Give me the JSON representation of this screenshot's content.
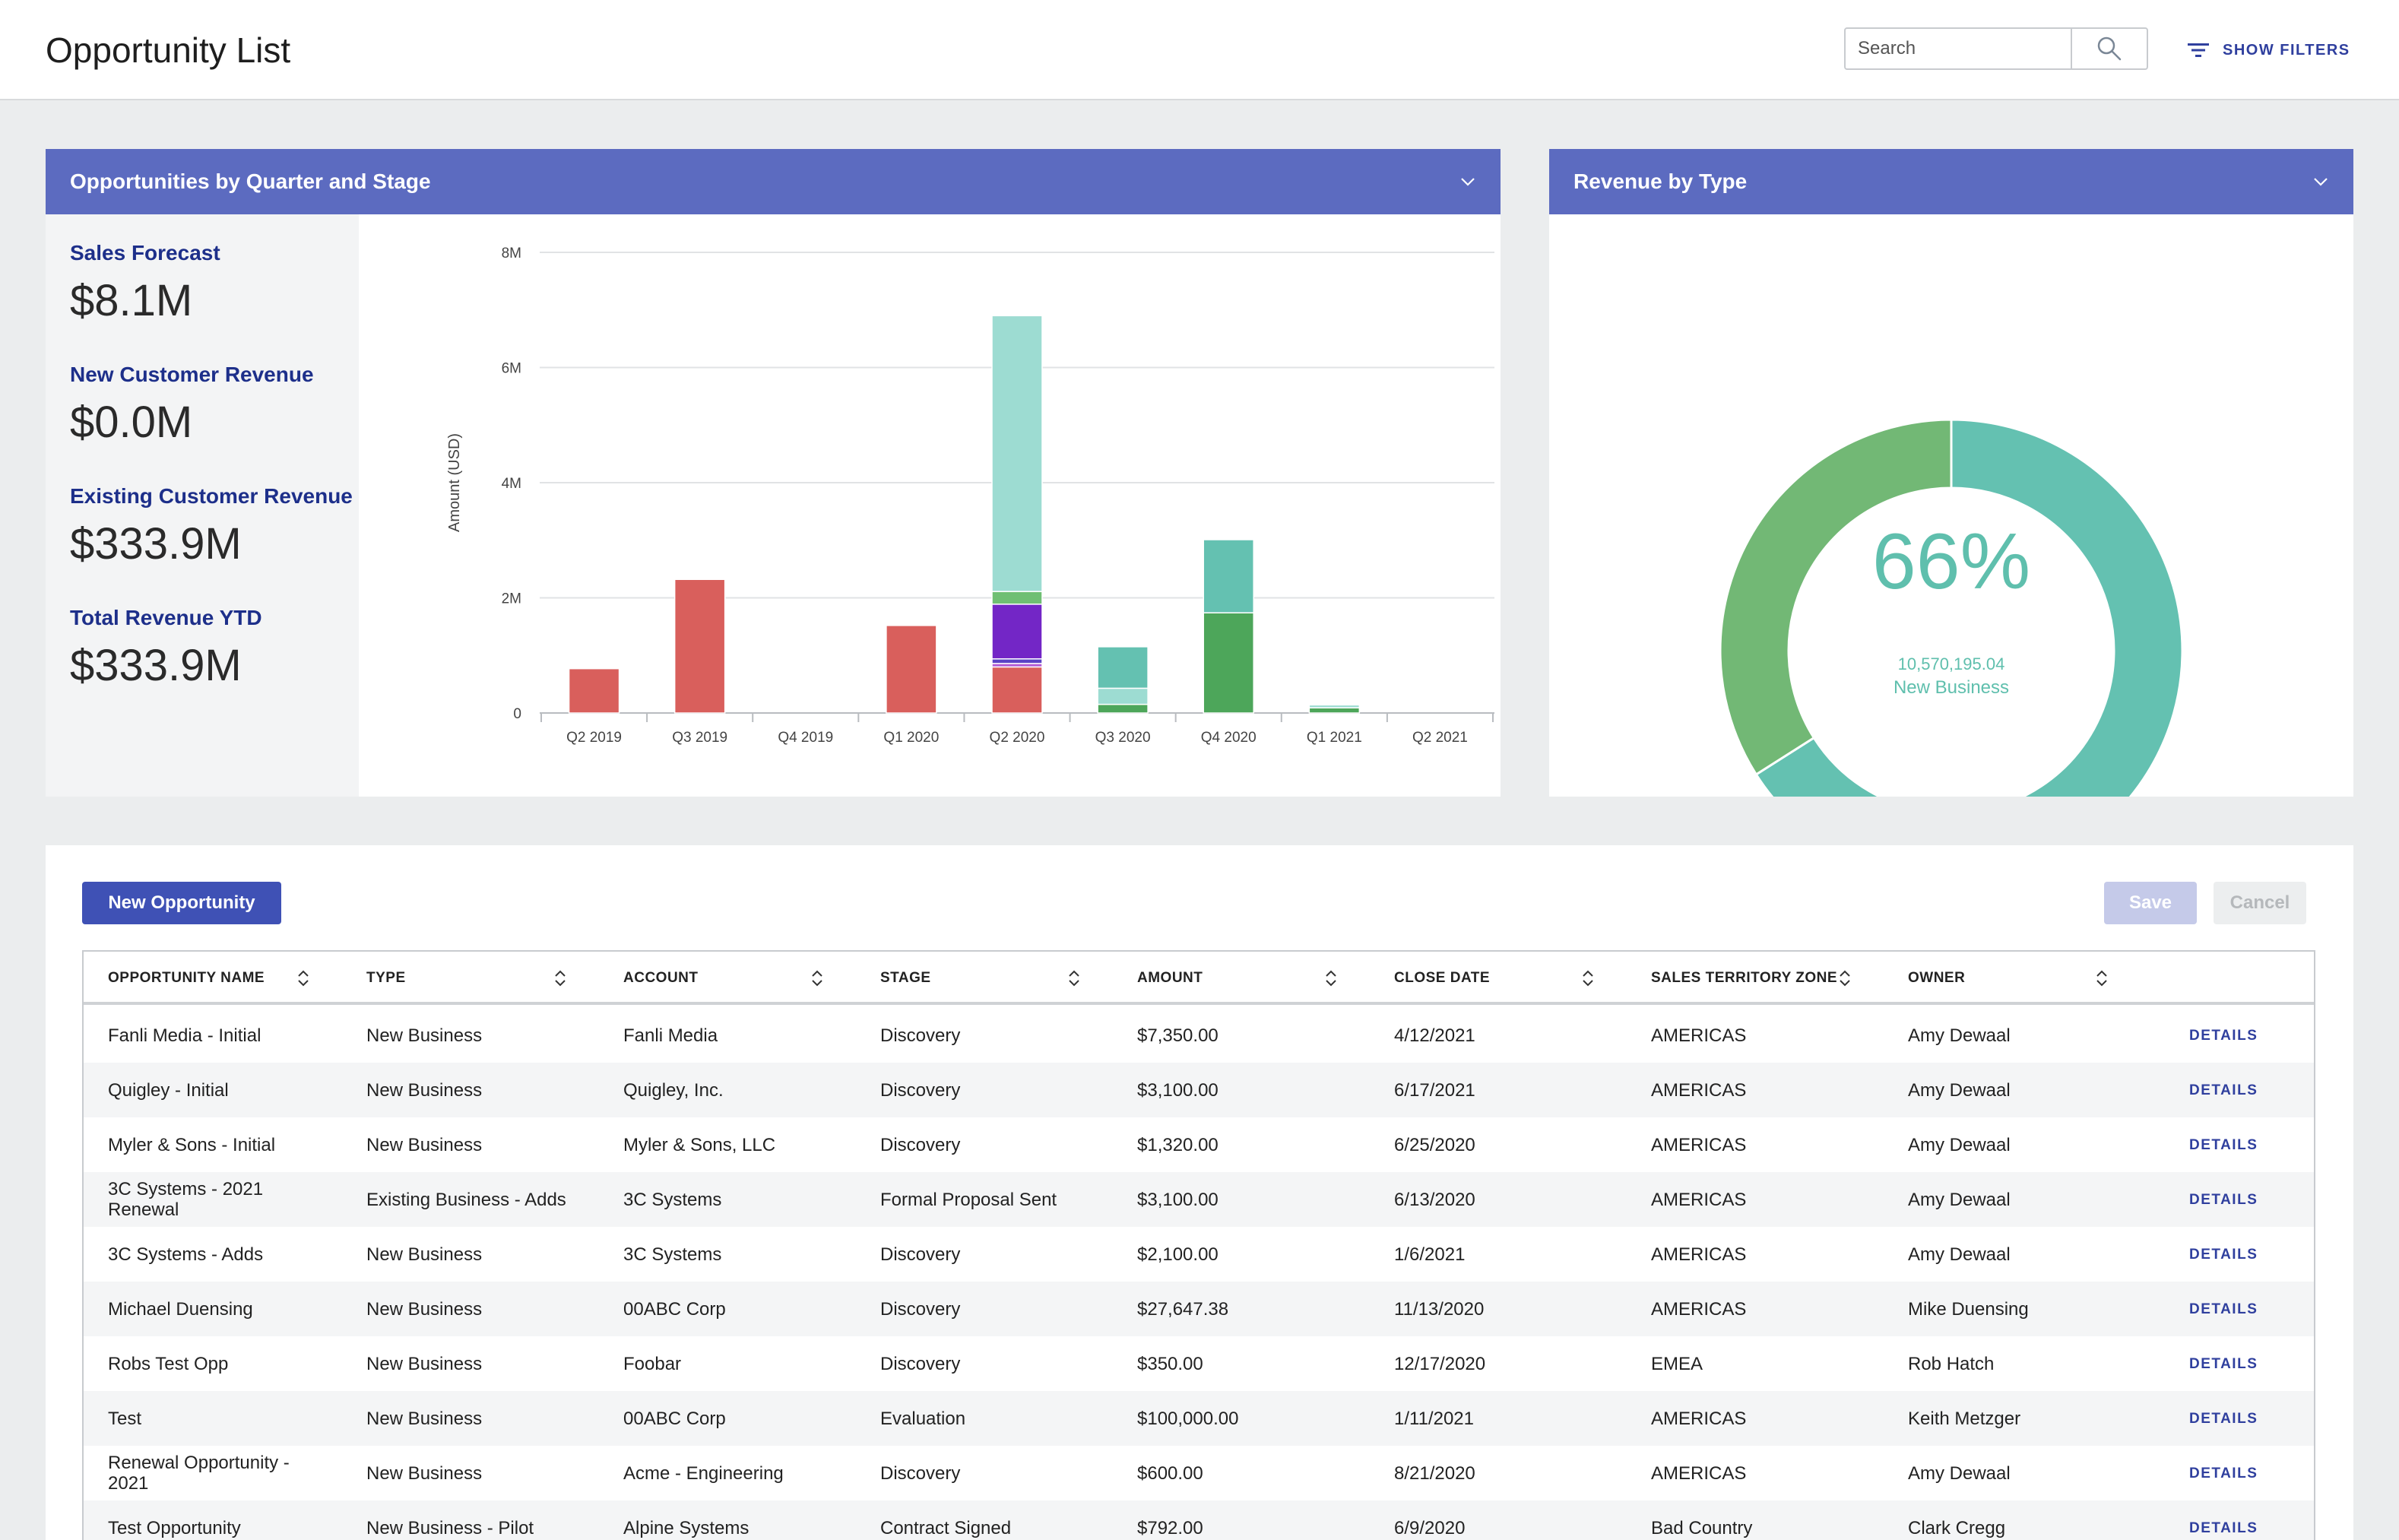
{
  "header": {
    "title": "Opportunity List",
    "search_placeholder": "Search",
    "show_filters_label": "SHOW FILTERS"
  },
  "chart_card": {
    "title": "Opportunities by Quarter and Stage",
    "kpis": [
      {
        "label": "Sales Forecast",
        "value": "$8.1M"
      },
      {
        "label": "New Customer Revenue",
        "value": "$0.0M"
      },
      {
        "label": "Existing Customer Revenue",
        "value": "$333.9M"
      },
      {
        "label": "Total Revenue YTD",
        "value": "$333.9M"
      }
    ]
  },
  "donut_card": {
    "title": "Revenue by Type",
    "center_percent": "66%",
    "center_amount": "10,570,195.04",
    "center_label": "New Business"
  },
  "chart_data": [
    {
      "type": "bar",
      "stacked": true,
      "ylabel": "Amount (USD)",
      "ylim": [
        0,
        8000000
      ],
      "yticks": [
        "0",
        "2M",
        "4M",
        "6M",
        "8M"
      ],
      "categories": [
        "Q2 2019",
        "Q3 2019",
        "Q4 2019",
        "Q1 2020",
        "Q2 2020",
        "Q3 2020",
        "Q4 2020",
        "Q1 2021",
        "Q2 2021"
      ],
      "series": [
        {
          "color": "#d95f5c",
          "values": [
            770000,
            2320000,
            0,
            1520000,
            800000,
            0,
            0,
            0,
            0
          ]
        },
        {
          "color": "#b15ad6",
          "values": [
            0,
            0,
            0,
            0,
            60000,
            0,
            0,
            0,
            0
          ]
        },
        {
          "color": "#5b43c6",
          "values": [
            0,
            0,
            0,
            0,
            80000,
            0,
            0,
            0,
            0
          ]
        },
        {
          "color": "#7326c6",
          "values": [
            0,
            0,
            0,
            0,
            950000,
            0,
            0,
            0,
            0
          ]
        },
        {
          "color": "#4da65a",
          "values": [
            0,
            0,
            0,
            0,
            0,
            150000,
            1740000,
            90000,
            0
          ]
        },
        {
          "color": "#6fbf73",
          "values": [
            0,
            0,
            0,
            0,
            220000,
            0,
            0,
            0,
            0
          ]
        },
        {
          "color": "#9ddcd2",
          "values": [
            0,
            0,
            0,
            0,
            4790000,
            280000,
            0,
            50000,
            0
          ]
        },
        {
          "color": "#64c1b1",
          "values": [
            0,
            0,
            0,
            0,
            0,
            720000,
            1270000,
            0,
            0
          ]
        }
      ]
    },
    {
      "type": "pie",
      "donut": true,
      "slices": [
        {
          "label": "New Business",
          "value": 0.66,
          "color": "#64c1b1"
        },
        {
          "value": 0.34,
          "color": "#72b875"
        }
      ]
    }
  ],
  "table": {
    "new_button": "New Opportunity",
    "save_button": "Save",
    "cancel_button": "Cancel",
    "columns": [
      "OPPORTUNITY NAME",
      "TYPE",
      "ACCOUNT",
      "STAGE",
      "AMOUNT",
      "CLOSE DATE",
      "SALES TERRITORY ZONE",
      "OWNER"
    ],
    "details_label": "DETAILS",
    "rows": [
      [
        "Fanli Media - Initial",
        "New Business",
        "Fanli Media",
        "Discovery",
        "$7,350.00",
        "4/12/2021",
        "AMERICAS",
        "Amy Dewaal"
      ],
      [
        "Quigley - Initial",
        "New Business",
        "Quigley, Inc.",
        "Discovery",
        "$3,100.00",
        "6/17/2021",
        "AMERICAS",
        "Amy Dewaal"
      ],
      [
        "Myler & Sons - Initial",
        "New Business",
        "Myler & Sons, LLC",
        "Discovery",
        "$1,320.00",
        "6/25/2020",
        "AMERICAS",
        "Amy Dewaal"
      ],
      [
        "3C Systems - 2021 Renewal",
        "Existing Business - Adds",
        "3C Systems",
        "Formal Proposal Sent",
        "$3,100.00",
        "6/13/2020",
        "AMERICAS",
        "Amy Dewaal"
      ],
      [
        "3C Systems - Adds",
        "New Business",
        "3C Systems",
        "Discovery",
        "$2,100.00",
        "1/6/2021",
        "AMERICAS",
        "Amy Dewaal"
      ],
      [
        "Michael Duensing",
        "New Business",
        "00ABC Corp",
        "Discovery",
        "$27,647.38",
        "11/13/2020",
        "AMERICAS",
        "Mike Duensing"
      ],
      [
        "Robs Test Opp",
        "New Business",
        "Foobar",
        "Discovery",
        "$350.00",
        "12/17/2020",
        "EMEA",
        "Rob Hatch"
      ],
      [
        "Test",
        "New Business",
        "00ABC Corp",
        "Evaluation",
        "$100,000.00",
        "1/11/2021",
        "AMERICAS",
        "Keith Metzger"
      ],
      [
        "Renewal Opportunity - 2021",
        "New Business",
        "Acme - Engineering",
        "Discovery",
        "$600.00",
        "8/21/2020",
        "AMERICAS",
        "Amy Dewaal"
      ],
      [
        "Test Opportunity",
        "New Business - Pilot",
        "Alpine Systems",
        "Contract Signed",
        "$792.00",
        "6/9/2020",
        "Bad Country",
        "Clark Cregg"
      ]
    ]
  }
}
